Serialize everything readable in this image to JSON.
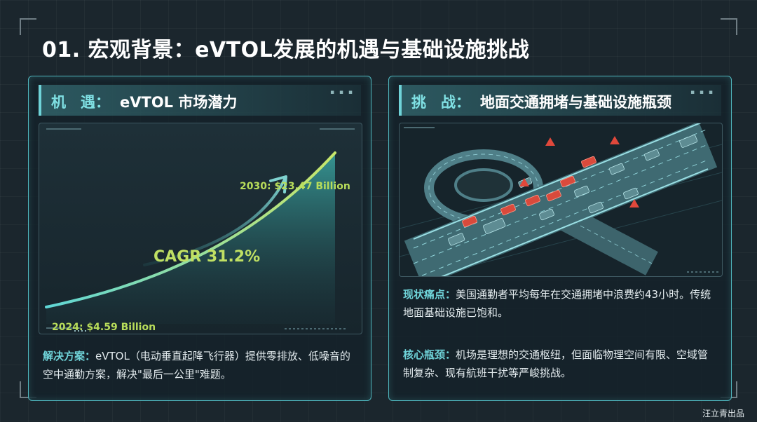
{
  "page": {
    "title": "01. 宏观背景：eVTOL发展的机遇与基础设施挑战",
    "credit": "汪立青出品"
  },
  "left_panel": {
    "header_key": "机　遇：",
    "header_text": "eVTOL 市场潜力",
    "solution_key": "解决方案：",
    "solution_text": "eVTOL（电动垂直起降飞行器）提供零排放、低噪音的空中通勤方案，解决\"最后一公里\"难题。"
  },
  "right_panel": {
    "header_key": "挑　战：",
    "header_text": "地面交通拥堵与基础设施瓶颈",
    "pain_key": "现状痛点：",
    "pain_text": "美国通勤者平均每年在交通拥堵中浪费约43小时。传统地面基础设施已饱和。",
    "core_key": "核心瓶颈：",
    "core_text": "机场是理想的交通枢纽，但面临物理空间有限、空域管制复杂、现有航班干扰等严峻挑战。"
  },
  "chart_data": {
    "type": "area",
    "title": "",
    "x": [
      2024,
      2030
    ],
    "series": [
      {
        "values": [
          4.59,
          23.47
        ]
      }
    ],
    "annotations": {
      "start": "2024: $4.59 Billion",
      "end": "2030: $23.47 Billion",
      "cagr": "CAGR 31.2%"
    },
    "colors": {
      "line_start": "#5fd6d6",
      "line_end": "#c8e66a",
      "fill": "#2f8f8c"
    }
  }
}
